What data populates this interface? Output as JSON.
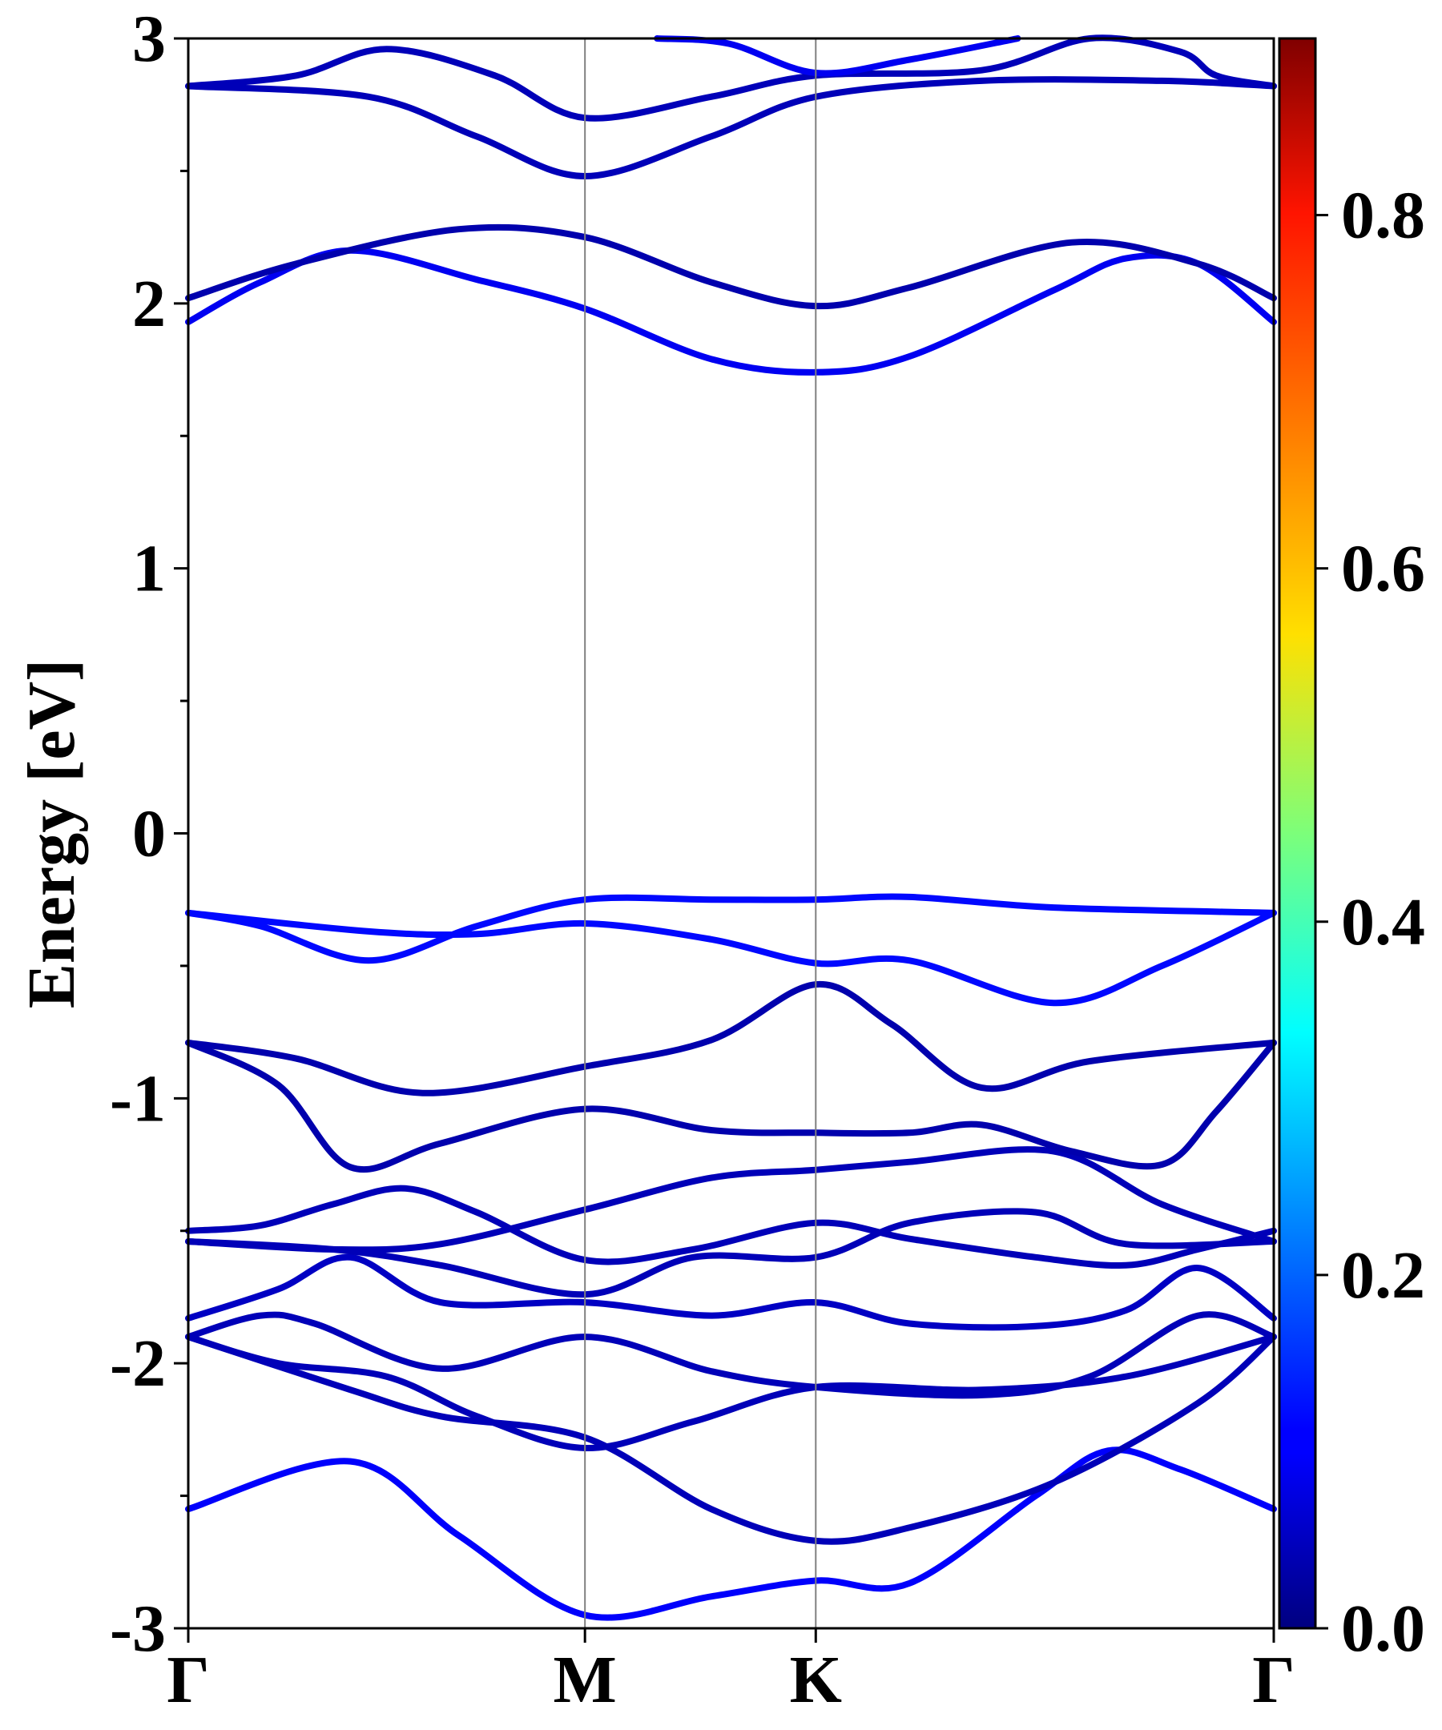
{
  "chart_data": {
    "type": "line",
    "ylabel": "Energy [eV]",
    "xlabel": "",
    "ylim": [
      -3,
      3
    ],
    "x_ticks": [
      "Γ",
      "M",
      "K",
      "Γ"
    ],
    "y_ticks": [
      "-3",
      "-2",
      "-1",
      "0",
      "1",
      "2",
      "3"
    ],
    "grid": "vertical lines at high-symmetry points",
    "colorbar": {
      "colormap": "jet",
      "min": 0.0,
      "max": 0.9,
      "tick_values": [
        0.0,
        0.2,
        0.4,
        0.6,
        0.8
      ],
      "tick_labels": [
        "0.0",
        "0.2",
        "0.4",
        "0.6",
        "0.8"
      ]
    },
    "x_path_positions": [
      0,
      1.1,
      1.74,
      3.01
    ],
    "series": [
      {
        "weight": 0.11,
        "points": [
          [
            0,
            -2.55
          ],
          [
            0.45,
            -2.37
          ],
          [
            0.75,
            -2.65
          ],
          [
            1.1,
            -2.95
          ],
          [
            1.45,
            -2.88
          ],
          [
            1.74,
            -2.82
          ],
          [
            2.0,
            -2.83
          ],
          [
            2.35,
            -2.5
          ],
          [
            2.55,
            -2.33
          ],
          [
            2.75,
            -2.4
          ],
          [
            3.01,
            -2.55
          ]
        ]
      },
      {
        "weight": 0.05,
        "points": [
          [
            0,
            -1.9
          ],
          [
            0.45,
            -2.1
          ],
          [
            0.7,
            -2.2
          ],
          [
            1.1,
            -2.28
          ],
          [
            1.45,
            -2.55
          ],
          [
            1.74,
            -2.67
          ],
          [
            2.0,
            -2.62
          ],
          [
            2.4,
            -2.45
          ],
          [
            2.8,
            -2.15
          ],
          [
            3.01,
            -1.9
          ]
        ]
      },
      {
        "weight": 0.05,
        "points": [
          [
            0,
            -1.9
          ],
          [
            0.25,
            -2.0
          ],
          [
            0.55,
            -2.05
          ],
          [
            0.8,
            -2.2
          ],
          [
            1.1,
            -2.32
          ],
          [
            1.4,
            -2.22
          ],
          [
            1.74,
            -2.09
          ],
          [
            2.2,
            -2.1
          ],
          [
            2.6,
            -2.05
          ],
          [
            3.01,
            -1.9
          ]
        ]
      },
      {
        "weight": 0.05,
        "points": [
          [
            0,
            -1.9
          ],
          [
            0.2,
            -1.82
          ],
          [
            0.35,
            -1.85
          ],
          [
            0.7,
            -2.02
          ],
          [
            1.1,
            -1.9
          ],
          [
            1.45,
            -2.03
          ],
          [
            1.74,
            -2.09
          ],
          [
            2.2,
            -2.12
          ],
          [
            2.5,
            -2.05
          ],
          [
            2.8,
            -1.82
          ],
          [
            3.01,
            -1.9
          ]
        ]
      },
      {
        "weight": 0.06,
        "points": [
          [
            0,
            -1.83
          ],
          [
            0.25,
            -1.72
          ],
          [
            0.45,
            -1.6
          ],
          [
            0.7,
            -1.77
          ],
          [
            1.1,
            -1.77
          ],
          [
            1.45,
            -1.82
          ],
          [
            1.74,
            -1.77
          ],
          [
            2.0,
            -1.85
          ],
          [
            2.35,
            -1.86
          ],
          [
            2.6,
            -1.8
          ],
          [
            2.8,
            -1.64
          ],
          [
            3.01,
            -1.83
          ]
        ]
      },
      {
        "weight": 0.05,
        "points": [
          [
            0,
            -1.54
          ],
          [
            0.4,
            -1.57
          ],
          [
            0.7,
            -1.63
          ],
          [
            1.1,
            -1.74
          ],
          [
            1.4,
            -1.6
          ],
          [
            1.74,
            -1.6
          ],
          [
            2.0,
            -1.47
          ],
          [
            2.35,
            -1.43
          ],
          [
            2.6,
            -1.55
          ],
          [
            3.01,
            -1.54
          ]
        ]
      },
      {
        "weight": 0.05,
        "points": [
          [
            0,
            -1.54
          ],
          [
            0.4,
            -1.57
          ],
          [
            0.7,
            -1.55
          ],
          [
            1.1,
            -1.42
          ],
          [
            1.45,
            -1.3
          ],
          [
            1.74,
            -1.27
          ],
          [
            2.0,
            -1.24
          ],
          [
            2.4,
            -1.2
          ],
          [
            2.7,
            -1.4
          ],
          [
            3.01,
            -1.54
          ]
        ]
      },
      {
        "weight": 0.05,
        "points": [
          [
            0,
            -1.5
          ],
          [
            0.2,
            -1.48
          ],
          [
            0.4,
            -1.4
          ],
          [
            0.6,
            -1.34
          ],
          [
            0.8,
            -1.43
          ],
          [
            1.1,
            -1.61
          ],
          [
            1.4,
            -1.57
          ],
          [
            1.74,
            -1.47
          ],
          [
            2.0,
            -1.53
          ],
          [
            2.35,
            -1.6
          ],
          [
            2.6,
            -1.63
          ],
          [
            2.8,
            -1.57
          ],
          [
            3.01,
            -1.5
          ]
        ]
      },
      {
        "weight": 0.04,
        "points": [
          [
            0,
            -0.79
          ],
          [
            0.25,
            -0.95
          ],
          [
            0.45,
            -1.26
          ],
          [
            0.7,
            -1.17
          ],
          [
            1.1,
            -1.04
          ],
          [
            1.45,
            -1.12
          ],
          [
            1.74,
            -1.13
          ],
          [
            2.0,
            -1.13
          ],
          [
            2.2,
            -1.1
          ],
          [
            2.45,
            -1.2
          ],
          [
            2.7,
            -1.25
          ],
          [
            2.85,
            -1.05
          ],
          [
            3.01,
            -0.79
          ]
        ]
      },
      {
        "weight": 0.04,
        "points": [
          [
            0,
            -0.79
          ],
          [
            0.3,
            -0.85
          ],
          [
            0.65,
            -0.98
          ],
          [
            1.1,
            -0.88
          ],
          [
            1.45,
            -0.78
          ],
          [
            1.74,
            -0.57
          ],
          [
            1.95,
            -0.72
          ],
          [
            2.2,
            -0.96
          ],
          [
            2.5,
            -0.86
          ],
          [
            3.01,
            -0.79
          ]
        ]
      },
      {
        "weight": 0.12,
        "points": [
          [
            0,
            -0.3
          ],
          [
            0.5,
            -0.37
          ],
          [
            0.8,
            -0.38
          ],
          [
            1.1,
            -0.34
          ],
          [
            1.45,
            -0.4
          ],
          [
            1.74,
            -0.49
          ],
          [
            2.0,
            -0.48
          ],
          [
            2.4,
            -0.64
          ],
          [
            2.7,
            -0.5
          ],
          [
            3.01,
            -0.3
          ]
        ]
      },
      {
        "weight": 0.12,
        "points": [
          [
            0,
            -0.3
          ],
          [
            0.2,
            -0.35
          ],
          [
            0.5,
            -0.48
          ],
          [
            0.8,
            -0.35
          ],
          [
            1.1,
            -0.25
          ],
          [
            1.45,
            -0.25
          ],
          [
            1.74,
            -0.25
          ],
          [
            2.0,
            -0.24
          ],
          [
            2.4,
            -0.28
          ],
          [
            3.01,
            -0.3
          ]
        ]
      },
      {
        "weight": 0.1,
        "points": [
          [
            0,
            1.93
          ],
          [
            0.2,
            2.08
          ],
          [
            0.45,
            2.2
          ],
          [
            0.8,
            2.09
          ],
          [
            1.1,
            1.98
          ],
          [
            1.45,
            1.79
          ],
          [
            1.74,
            1.74
          ],
          [
            2.0,
            1.8
          ],
          [
            2.4,
            2.05
          ],
          [
            2.6,
            2.17
          ],
          [
            2.8,
            2.15
          ],
          [
            3.01,
            1.93
          ]
        ]
      },
      {
        "weight": 0.04,
        "points": [
          [
            0,
            2.02
          ],
          [
            0.3,
            2.15
          ],
          [
            0.75,
            2.28
          ],
          [
            1.1,
            2.25
          ],
          [
            1.45,
            2.08
          ],
          [
            1.74,
            1.99
          ],
          [
            2.0,
            2.06
          ],
          [
            2.45,
            2.23
          ],
          [
            2.8,
            2.15
          ],
          [
            3.01,
            2.02
          ]
        ]
      },
      {
        "weight": 0.05,
        "points": [
          [
            0,
            2.82
          ],
          [
            0.5,
            2.78
          ],
          [
            0.8,
            2.63
          ],
          [
            1.1,
            2.48
          ],
          [
            1.45,
            2.63
          ],
          [
            1.74,
            2.78
          ],
          [
            2.2,
            2.84
          ],
          [
            2.7,
            2.84
          ],
          [
            3.01,
            2.82
          ]
        ]
      },
      {
        "weight": 0.05,
        "points": [
          [
            0,
            2.82
          ],
          [
            0.3,
            2.86
          ],
          [
            0.55,
            2.96
          ],
          [
            0.85,
            2.86
          ],
          [
            1.1,
            2.7
          ],
          [
            1.45,
            2.78
          ],
          [
            1.74,
            2.86
          ],
          [
            2.2,
            2.88
          ],
          [
            2.5,
            3.0
          ],
          [
            2.75,
            2.95
          ],
          [
            2.85,
            2.86
          ],
          [
            3.01,
            2.82
          ]
        ]
      },
      {
        "weight": 0.1,
        "points": [
          [
            1.3,
            3.0
          ],
          [
            1.5,
            2.98
          ],
          [
            1.74,
            2.87
          ],
          [
            2.0,
            2.92
          ],
          [
            2.3,
            3.0
          ]
        ]
      }
    ]
  }
}
